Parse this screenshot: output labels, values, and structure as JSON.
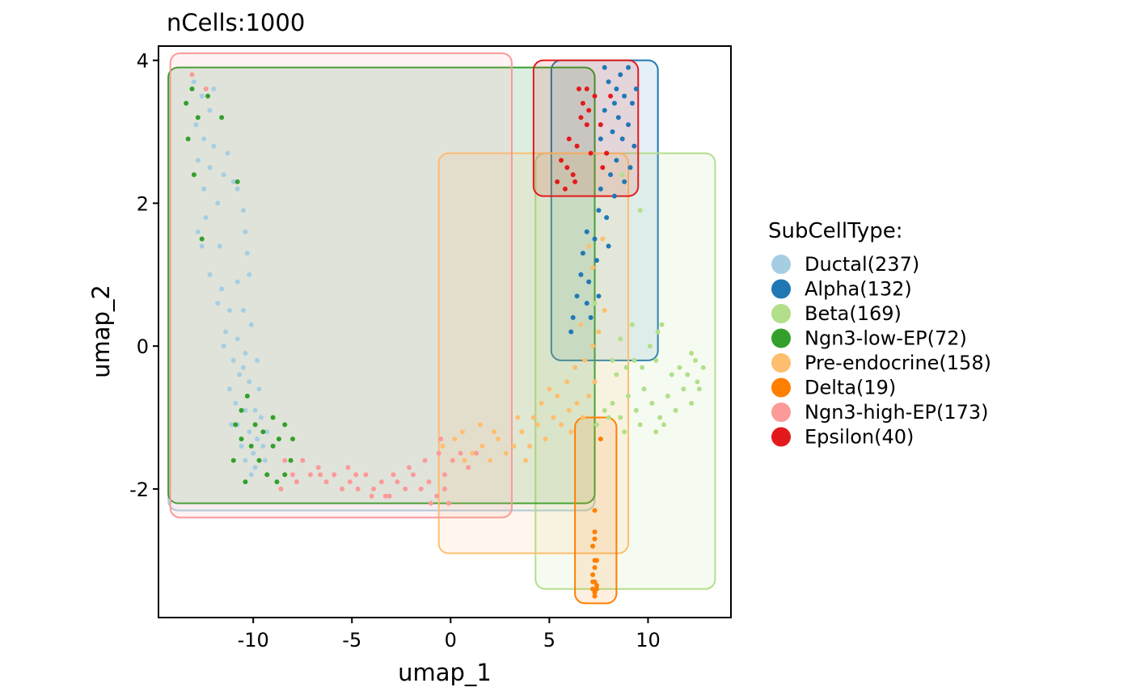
{
  "chart_data": {
    "type": "scatter",
    "title": "nCells:1000",
    "xlabel": "umap_1",
    "ylabel": "umap_2",
    "xlim": [
      -14.8,
      14.2
    ],
    "ylim": [
      -3.8,
      4.2
    ],
    "xticks": [
      -10,
      -5,
      0,
      5,
      10
    ],
    "xtick_labels": [
      "-10",
      "-5",
      "0",
      "5",
      "10"
    ],
    "yticks": [
      -2,
      0,
      2,
      4
    ],
    "ytick_labels": [
      "-2",
      "0",
      "2",
      "4"
    ],
    "grid": false,
    "legend": {
      "title": "SubCellType:",
      "placement": "right",
      "items": [
        {
          "label": "Ductal(237)",
          "color": "#A6CEE3"
        },
        {
          "label": "Alpha(132)",
          "color": "#1F78B4"
        },
        {
          "label": "Beta(169)",
          "color": "#B2DF8A"
        },
        {
          "label": "Ngn3-low-EP(72)",
          "color": "#33A02C"
        },
        {
          "label": "Pre-endocrine(158)",
          "color": "#FDBF6F"
        },
        {
          "label": "Delta(19)",
          "color": "#FF7F00"
        },
        {
          "label": "Ngn3-high-EP(173)",
          "color": "#FB9A99"
        },
        {
          "label": "Epsilon(40)",
          "color": "#E31A1C"
        }
      ]
    },
    "series": [
      {
        "category": "Ductal",
        "color": "#A6CEE3",
        "count": 237,
        "hull": [
          -14.3,
          7.3,
          -2.3,
          3.9
        ],
        "points": [
          [
            -13.0,
            3.7
          ],
          [
            -12.6,
            3.5
          ],
          [
            -12.2,
            3.3
          ],
          [
            -12.9,
            3.1
          ],
          [
            -12.5,
            2.9
          ],
          [
            -12.0,
            2.8
          ],
          [
            -12.8,
            2.6
          ],
          [
            -12.2,
            2.5
          ],
          [
            -11.5,
            2.4
          ],
          [
            -11.0,
            2.3
          ],
          [
            -12.5,
            2.2
          ],
          [
            -11.8,
            2.0
          ],
          [
            -10.8,
            2.2
          ],
          [
            -10.5,
            1.9
          ],
          [
            -12.8,
            1.6
          ],
          [
            -12.6,
            1.4
          ],
          [
            -11.7,
            1.4
          ],
          [
            -10.4,
            1.6
          ],
          [
            -10.3,
            1.3
          ],
          [
            -12.2,
            1.0
          ],
          [
            -11.6,
            0.8
          ],
          [
            -10.8,
            0.9
          ],
          [
            -10.2,
            1.0
          ],
          [
            -11.8,
            0.6
          ],
          [
            -11.2,
            0.5
          ],
          [
            -10.5,
            0.5
          ],
          [
            -11.4,
            0.2
          ],
          [
            -10.8,
            0.1
          ],
          [
            -10.1,
            0.3
          ],
          [
            -11.0,
            -0.2
          ],
          [
            -10.4,
            -0.1
          ],
          [
            -9.8,
            -0.2
          ],
          [
            -10.7,
            -0.4
          ],
          [
            -10.2,
            -0.5
          ],
          [
            -9.7,
            -0.6
          ],
          [
            -11.2,
            -0.6
          ],
          [
            -10.9,
            -0.8
          ],
          [
            -10.4,
            -0.9
          ],
          [
            -9.9,
            -0.9
          ],
          [
            -9.6,
            -1.0
          ],
          [
            -10.8,
            -1.1
          ],
          [
            -10.2,
            -1.2
          ],
          [
            -9.8,
            -1.3
          ],
          [
            -10.6,
            -1.4
          ],
          [
            -10.0,
            -1.5
          ],
          [
            -9.5,
            -1.4
          ],
          [
            -10.4,
            -1.6
          ],
          [
            -9.9,
            -1.7
          ],
          [
            -9.4,
            -1.6
          ],
          [
            -10.1,
            -1.8
          ],
          [
            -11.1,
            -1.1
          ],
          [
            -9.3,
            -1.2
          ],
          [
            -10.5,
            -0.3
          ],
          [
            -11.5,
            0.0
          ],
          [
            -12.4,
            1.8
          ],
          [
            -11.3,
            2.7
          ],
          [
            -12.0,
            3.6
          ]
        ]
      },
      {
        "category": "Alpha",
        "color": "#1F78B4",
        "count": 132,
        "hull": [
          5.1,
          10.5,
          -0.2,
          4.0
        ],
        "points": [
          [
            8.0,
            3.7
          ],
          [
            8.4,
            3.6
          ],
          [
            8.8,
            3.5
          ],
          [
            9.2,
            3.4
          ],
          [
            7.8,
            3.3
          ],
          [
            8.5,
            3.2
          ],
          [
            9.0,
            3.1
          ],
          [
            8.2,
            3.0
          ],
          [
            8.7,
            2.9
          ],
          [
            9.3,
            2.8
          ],
          [
            7.9,
            2.7
          ],
          [
            8.4,
            2.6
          ],
          [
            9.1,
            2.5
          ],
          [
            8.1,
            2.4
          ],
          [
            8.8,
            2.3
          ],
          [
            7.6,
            2.2
          ],
          [
            8.3,
            2.1
          ],
          [
            7.5,
            1.9
          ],
          [
            7.9,
            1.8
          ],
          [
            6.9,
            1.6
          ],
          [
            7.3,
            1.5
          ],
          [
            6.7,
            1.3
          ],
          [
            7.4,
            1.2
          ],
          [
            6.6,
            1.0
          ],
          [
            7.0,
            0.9
          ],
          [
            6.4,
            0.7
          ],
          [
            6.9,
            0.6
          ],
          [
            6.2,
            0.4
          ],
          [
            7.1,
            0.4
          ],
          [
            6.1,
            0.2
          ],
          [
            7.8,
            3.9
          ],
          [
            8.6,
            3.8
          ],
          [
            9.4,
            3.6
          ],
          [
            7.6,
            2.9
          ],
          [
            9.0,
            3.9
          ],
          [
            8.0,
            1.4
          ],
          [
            7.5,
            0.7
          ],
          [
            8.3,
            3.4
          ]
        ]
      },
      {
        "category": "Beta",
        "color": "#B2DF8A",
        "count": 169,
        "hull": [
          4.3,
          13.4,
          -3.4,
          2.7
        ],
        "points": [
          [
            7.4,
            -1.1
          ],
          [
            7.8,
            -0.9
          ],
          [
            8.2,
            -0.8
          ],
          [
            8.6,
            -1.0
          ],
          [
            9.0,
            -0.7
          ],
          [
            9.4,
            -0.9
          ],
          [
            9.8,
            -0.6
          ],
          [
            10.2,
            -0.8
          ],
          [
            10.6,
            -1.0
          ],
          [
            11.0,
            -0.7
          ],
          [
            11.4,
            -0.9
          ],
          [
            11.8,
            -0.6
          ],
          [
            12.2,
            -0.8
          ],
          [
            12.5,
            -0.5
          ],
          [
            12.8,
            -0.3
          ],
          [
            12.4,
            -0.2
          ],
          [
            12.0,
            -0.4
          ],
          [
            11.6,
            -0.3
          ],
          [
            10.8,
            -1.1
          ],
          [
            10.4,
            -1.2
          ],
          [
            9.6,
            -1.1
          ],
          [
            8.8,
            -1.2
          ],
          [
            8.0,
            -1.0
          ],
          [
            8.4,
            -0.4
          ],
          [
            8.9,
            -0.3
          ],
          [
            9.3,
            -0.2
          ],
          [
            9.7,
            -0.3
          ],
          [
            10.1,
            0.0
          ],
          [
            10.5,
            0.2
          ],
          [
            10.7,
            0.3
          ],
          [
            12.2,
            -0.1
          ],
          [
            11.2,
            -0.4
          ],
          [
            8.6,
            0.1
          ],
          [
            8.2,
            -0.2
          ],
          [
            9.2,
            0.3
          ],
          [
            7.3,
            0.6
          ],
          [
            8.7,
            2.4
          ],
          [
            9.6,
            1.9
          ],
          [
            10.4,
            -0.2
          ],
          [
            12.6,
            -0.6
          ]
        ]
      },
      {
        "category": "Ngn3-low-EP",
        "color": "#33A02C",
        "count": 72,
        "hull": [
          -14.3,
          7.3,
          -2.2,
          3.9
        ],
        "points": [
          [
            -13.1,
            3.6
          ],
          [
            -13.4,
            3.4
          ],
          [
            -12.8,
            3.2
          ],
          [
            -13.3,
            2.9
          ],
          [
            -13.0,
            2.4
          ],
          [
            -11.6,
            3.2
          ],
          [
            -10.8,
            2.3
          ],
          [
            -12.6,
            1.5
          ],
          [
            -10.3,
            -0.7
          ],
          [
            -10.9,
            -1.1
          ],
          [
            -10.6,
            -1.3
          ],
          [
            -10.1,
            -1.4
          ],
          [
            -9.7,
            -1.6
          ],
          [
            -9.3,
            -1.8
          ],
          [
            -9.0,
            -1.4
          ],
          [
            -8.7,
            -1.3
          ],
          [
            -8.4,
            -1.1
          ],
          [
            -8.1,
            -1.6
          ],
          [
            -8.8,
            -1.9
          ],
          [
            -9.5,
            -1.2
          ],
          [
            -10.4,
            -1.9
          ],
          [
            -11.0,
            -1.6
          ],
          [
            -8.4,
            -1.8
          ],
          [
            -9.9,
            -1.1
          ],
          [
            -8.0,
            -1.3
          ],
          [
            -9.0,
            -1.0
          ],
          [
            -10.6,
            -0.9
          ],
          [
            -12.3,
            3.5
          ]
        ]
      },
      {
        "category": "Pre-endocrine",
        "color": "#FDBF6F",
        "count": 158,
        "hull": [
          -0.6,
          9.0,
          -2.9,
          2.7
        ],
        "points": [
          [
            -0.4,
            -1.4
          ],
          [
            0.2,
            -1.3
          ],
          [
            0.7,
            -1.6
          ],
          [
            1.1,
            -1.5
          ],
          [
            1.6,
            -1.4
          ],
          [
            2.0,
            -1.6
          ],
          [
            2.4,
            -1.3
          ],
          [
            2.8,
            -1.5
          ],
          [
            3.2,
            -1.4
          ],
          [
            3.6,
            -1.2
          ],
          [
            4.0,
            -1.4
          ],
          [
            4.4,
            -1.1
          ],
          [
            4.8,
            -1.3
          ],
          [
            5.2,
            -1.0
          ],
          [
            5.6,
            -1.1
          ],
          [
            6.0,
            -0.9
          ],
          [
            6.4,
            -0.8
          ],
          [
            6.7,
            -1.0
          ],
          [
            7.0,
            -0.7
          ],
          [
            7.3,
            -0.5
          ],
          [
            5.0,
            -0.6
          ],
          [
            5.4,
            -0.7
          ],
          [
            5.9,
            -0.5
          ],
          [
            6.3,
            -0.3
          ],
          [
            6.8,
            -0.2
          ],
          [
            7.2,
            0.0
          ],
          [
            7.5,
            0.2
          ],
          [
            6.6,
            0.3
          ],
          [
            7.8,
            0.5
          ],
          [
            7.2,
            1.1
          ],
          [
            7.0,
            1.4
          ],
          [
            7.7,
            1.5
          ],
          [
            3.8,
            -1.6
          ],
          [
            4.2,
            -1.0
          ],
          [
            1.5,
            -1.1
          ],
          [
            0.6,
            -1.2
          ],
          [
            6.1,
            -1.2
          ],
          [
            2.2,
            -1.2
          ],
          [
            3.4,
            -1.0
          ],
          [
            4.6,
            -0.8
          ]
        ]
      },
      {
        "category": "Delta",
        "color": "#FF7F00",
        "count": 19,
        "hull": [
          6.3,
          8.4,
          -3.6,
          -1.0
        ],
        "points": [
          [
            7.6,
            -1.3
          ],
          [
            7.3,
            -2.3
          ],
          [
            7.3,
            -2.6
          ],
          [
            7.2,
            -2.8
          ],
          [
            7.4,
            -3.0
          ],
          [
            7.3,
            -3.1
          ],
          [
            7.2,
            -3.2
          ],
          [
            7.3,
            -3.3
          ],
          [
            7.4,
            -3.35
          ],
          [
            7.2,
            -3.4
          ],
          [
            7.3,
            -3.45
          ],
          [
            7.3,
            -3.5
          ],
          [
            7.4,
            -3.4
          ],
          [
            7.2,
            -3.3
          ],
          [
            7.3,
            -3.0
          ],
          [
            7.3,
            -2.7
          ]
        ]
      },
      {
        "category": "Ngn3-high-EP",
        "color": "#FB9A99",
        "count": 173,
        "hull": [
          -14.2,
          3.1,
          -2.4,
          4.1
        ],
        "points": [
          [
            -8.4,
            -1.6
          ],
          [
            -8.0,
            -1.8
          ],
          [
            -7.5,
            -1.6
          ],
          [
            -7.1,
            -1.8
          ],
          [
            -6.7,
            -1.7
          ],
          [
            -6.3,
            -1.9
          ],
          [
            -5.9,
            -1.8
          ],
          [
            -5.5,
            -2.0
          ],
          [
            -5.1,
            -1.9
          ],
          [
            -4.7,
            -2.0
          ],
          [
            -4.3,
            -1.8
          ],
          [
            -3.9,
            -2.0
          ],
          [
            -3.5,
            -1.9
          ],
          [
            -3.1,
            -2.1
          ],
          [
            -2.7,
            -1.9
          ],
          [
            -2.3,
            -2.0
          ],
          [
            -1.9,
            -1.8
          ],
          [
            -1.5,
            -2.0
          ],
          [
            -1.1,
            -1.9
          ],
          [
            -0.7,
            -2.1
          ],
          [
            -0.3,
            -1.8
          ],
          [
            0.1,
            -1.6
          ],
          [
            0.5,
            -1.5
          ],
          [
            0.9,
            -1.7
          ],
          [
            1.3,
            -1.5
          ],
          [
            -0.1,
            -2.2
          ],
          [
            -0.6,
            -1.5
          ],
          [
            -1.3,
            -1.6
          ],
          [
            -2.1,
            -1.7
          ],
          [
            -2.9,
            -1.8
          ],
          [
            -4.0,
            -2.1
          ],
          [
            -5.2,
            -1.7
          ],
          [
            -6.6,
            -1.8
          ],
          [
            -7.8,
            -1.9
          ],
          [
            -8.6,
            -2.0
          ],
          [
            -13.1,
            3.8
          ],
          [
            -12.4,
            3.6
          ],
          [
            -0.5,
            -1.3
          ],
          [
            -1.0,
            -2.2
          ],
          [
            -0.3,
            -2.0
          ],
          [
            -3.3,
            -2.1
          ],
          [
            -4.8,
            -1.8
          ]
        ]
      },
      {
        "category": "Epsilon",
        "color": "#E31A1C",
        "count": 40,
        "hull": [
          4.2,
          9.5,
          2.1,
          4.0
        ],
        "points": [
          [
            6.5,
            3.6
          ],
          [
            6.9,
            3.6
          ],
          [
            7.3,
            3.5
          ],
          [
            6.7,
            3.4
          ],
          [
            7.0,
            3.3
          ],
          [
            6.6,
            3.2
          ],
          [
            6.9,
            3.1
          ],
          [
            7.6,
            3.1
          ],
          [
            6.0,
            2.9
          ],
          [
            6.4,
            2.8
          ],
          [
            7.1,
            2.7
          ],
          [
            5.6,
            2.6
          ],
          [
            5.9,
            2.5
          ],
          [
            6.2,
            2.4
          ],
          [
            5.4,
            2.3
          ],
          [
            5.8,
            2.2
          ],
          [
            6.3,
            2.3
          ],
          [
            7.7,
            2.5
          ],
          [
            7.9,
            2.7
          ],
          [
            8.1,
            3.5
          ]
        ]
      }
    ]
  }
}
